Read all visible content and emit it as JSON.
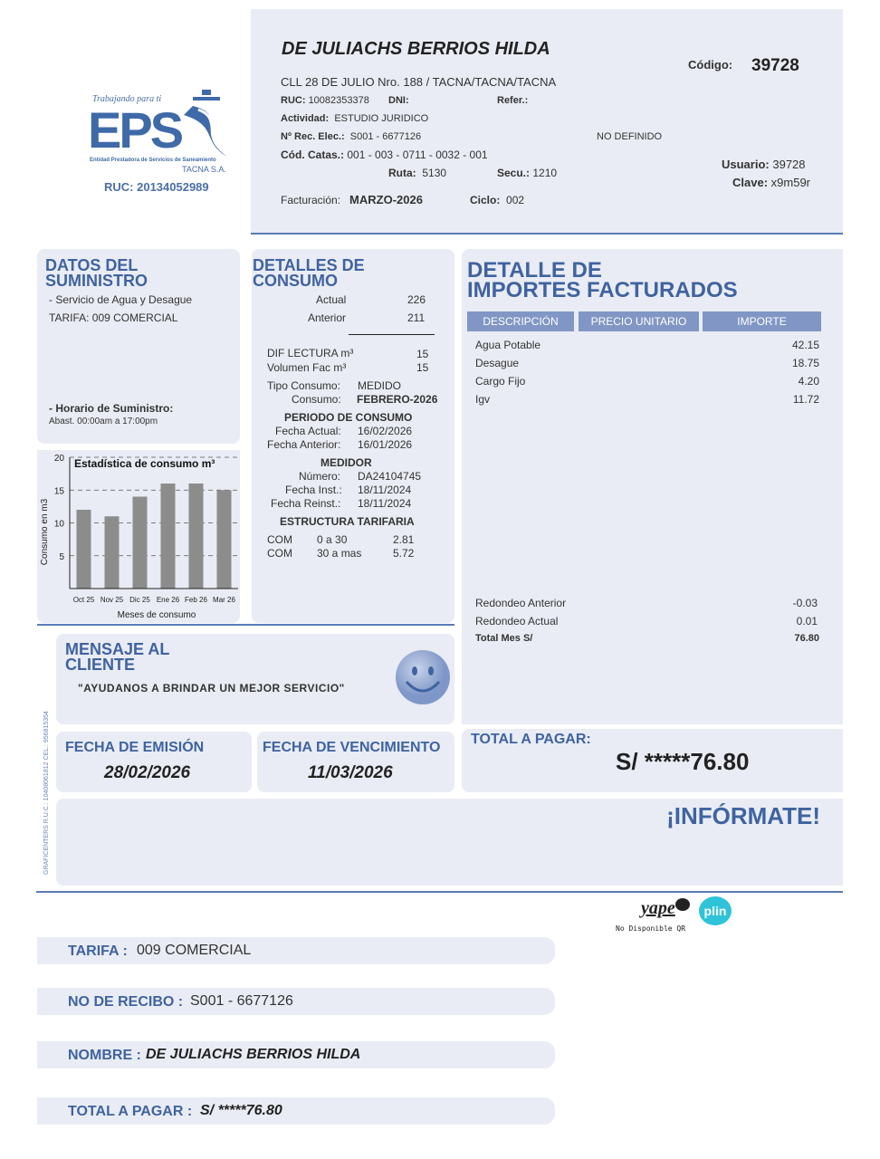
{
  "logo": {
    "tagline": "Trabajando para ti",
    "letters": "EPS",
    "entity": "Entidad Prestadora de Servicios de Saneamiento",
    "company": "TACNA S.A.",
    "ruc": "RUC: 20134052989"
  },
  "header": {
    "name": "DE JULIACHS BERRIOS HILDA",
    "address": "CLL 28 DE JULIO Nro. 188 / TACNA/TACNA/TACNA",
    "codigo_label": "Código:",
    "codigo": "39728",
    "ruc_label": "RUC:",
    "ruc": "10082353378",
    "dni_label": "DNI:",
    "refer_label": "Refer.:",
    "actividad_label": "Actividad:",
    "actividad": "ESTUDIO JURIDICO",
    "rec_label": "Nº Rec. Elec.:",
    "rec": "S001 - 6677126",
    "no_definido": "NO DEFINIDO",
    "catas_label": "Cód. Catas.:",
    "catas": "001 - 003 - 0711 - 0032 - 001",
    "ruta_label": "Ruta:",
    "ruta": "5130",
    "secu_label": "Secu.:",
    "secu": "1210",
    "usuario_label": "Usuario:",
    "usuario": "39728",
    "clave_label": "Clave:",
    "clave": "x9m59r",
    "fact_label": "Facturación:",
    "fact": "MARZO-2026",
    "ciclo_label": "Ciclo:",
    "ciclo": "002"
  },
  "suministro": {
    "title1": "DATOS DEL",
    "title2": "SUMINISTRO",
    "servicio": "- Servicio de Agua y Desague",
    "tarifa": "TARIFA: 009 COMERCIAL",
    "horario_label": "- Horario de Suministro:",
    "horario": "Abast. 00:00am a 17:00pm"
  },
  "chart_data": {
    "type": "bar",
    "title": "Estadística de consumo m³",
    "xlabel": "Meses de consumo",
    "ylabel": "Consumo en m3",
    "categories": [
      "Oct 25",
      "Nov 25",
      "Dic 25",
      "Ene 26",
      "Feb 26",
      "Mar 26"
    ],
    "values": [
      12,
      11,
      14,
      16,
      16,
      15
    ],
    "ylim": [
      0,
      20
    ],
    "yticks": [
      5,
      10,
      15,
      20
    ],
    "grid": true,
    "bar_color": "#8c8c8c"
  },
  "consumo": {
    "title1": "DETALLES DE",
    "title2": "CONSUMO",
    "actual_label": "Actual",
    "actual": "226",
    "anterior_label": "Anterior",
    "anterior": "211",
    "dif_label": "DIF LECTURA m³",
    "dif": "15",
    "vol_label": "Volumen Fac m³",
    "vol": "15",
    "tipo_label": "Tipo Consumo:",
    "tipo": "MEDIDO",
    "cons_label": "Consumo:",
    "cons": "FEBRERO-2026",
    "periodo_title": "PERIODO DE CONSUMO",
    "fa_label": "Fecha Actual:",
    "fa": "16/02/2026",
    "fan_label": "Fecha Anterior:",
    "fan": "16/01/2026",
    "medidor_title": "MEDIDOR",
    "num_label": "Número:",
    "num": "DA24104745",
    "fi_label": "Fecha Inst.:",
    "fi": "18/11/2024",
    "fr_label": "Fecha Reinst.:",
    "fr": "18/11/2024",
    "estructura_title": "ESTRUCTURA TARIFARIA",
    "tarifas": [
      {
        "c": "COM",
        "r": "0 a 30",
        "v": "2.81"
      },
      {
        "c": "COM",
        "r": "30 a mas",
        "v": "5.72"
      }
    ]
  },
  "importes": {
    "title1": "DETALLE DE",
    "title2": "IMPORTES FACTURADOS",
    "headers": [
      "DESCRIPCIÓN",
      "PRECIO UNITARIO",
      "IMPORTE"
    ],
    "rows": [
      {
        "d": "Agua Potable",
        "v": "42.15"
      },
      {
        "d": "Desague",
        "v": "18.75"
      },
      {
        "d": "Cargo Fijo",
        "v": "4.20"
      },
      {
        "d": "Igv",
        "v": "11.72"
      }
    ],
    "redondeo_ant_label": "Redondeo Anterior",
    "redondeo_ant": "-0.03",
    "redondeo_act_label": "Redondeo Actual",
    "redondeo_act": "0.01",
    "total_label": "Total Mes S/",
    "total": "76.80"
  },
  "mensaje": {
    "title1": "MENSAJE AL",
    "title2": "CLIENTE",
    "text": "\"AYUDANOS A BRINDAR UN MEJOR SERVICIO\""
  },
  "fechas": {
    "emision_label": "FECHA DE EMISIÓN",
    "emision": "28/02/2026",
    "venc_label": "FECHA DE VENCIMIENTO",
    "venc": "11/03/2026"
  },
  "total": {
    "label": "TOTAL A PAGAR:",
    "value": "S/ *****76.80"
  },
  "informate": "¡INFÓRMATE!",
  "printer": "GRAFICENTERS R.U.C.: 10408061812 CEL.: 956815354",
  "payments": {
    "yape": "yape",
    "plin": "plin",
    "qr": "No Disponible QR"
  },
  "footer": [
    {
      "k": "TARIFA :",
      "v": "009 COMERCIAL"
    },
    {
      "k": "NO DE RECIBO :",
      "v": "S001 - 6677126"
    },
    {
      "k": "NOMBRE :",
      "v": "DE JULIACHS BERRIOS HILDA"
    },
    {
      "k": "TOTAL A PAGAR :",
      "v": "S/ *****76.80"
    }
  ]
}
